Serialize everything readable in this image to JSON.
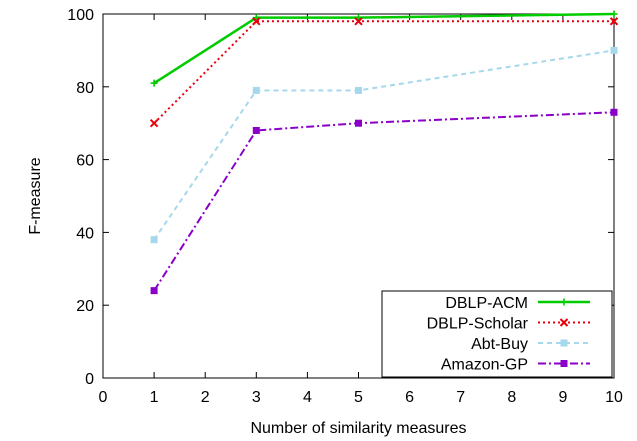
{
  "chart_data": {
    "type": "line",
    "xlabel": "Number of similarity measures",
    "ylabel": "F-measure",
    "xlim": [
      0,
      10
    ],
    "ylim": [
      0,
      100
    ],
    "xticks": [
      0,
      1,
      2,
      3,
      4,
      5,
      6,
      7,
      8,
      9,
      10
    ],
    "yticks": [
      0,
      20,
      40,
      60,
      80,
      100
    ],
    "grid": false,
    "legend_position": "bottom-right",
    "series": [
      {
        "name": "DBLP-ACM",
        "color": "#00cc00",
        "marker": "plus",
        "dash": "solid",
        "x": [
          1,
          3,
          5,
          10
        ],
        "y": [
          81,
          99,
          99,
          100
        ]
      },
      {
        "name": "DBLP-Scholar",
        "color": "#e8000b",
        "marker": "cross",
        "dash": "dotted",
        "x": [
          1,
          3,
          5,
          10
        ],
        "y": [
          70,
          98,
          98,
          98
        ]
      },
      {
        "name": "Abt-Buy",
        "color": "#a6d8ec",
        "marker": "square-filled",
        "dash": "dashed",
        "x": [
          1,
          3,
          5,
          10
        ],
        "y": [
          38,
          79,
          79,
          90
        ]
      },
      {
        "name": "Amazon-GP",
        "color": "#8a00c8",
        "marker": "square-filled",
        "dash": "dashdot",
        "x": [
          1,
          3,
          5,
          10
        ],
        "y": [
          24,
          68,
          70,
          73
        ]
      }
    ]
  }
}
